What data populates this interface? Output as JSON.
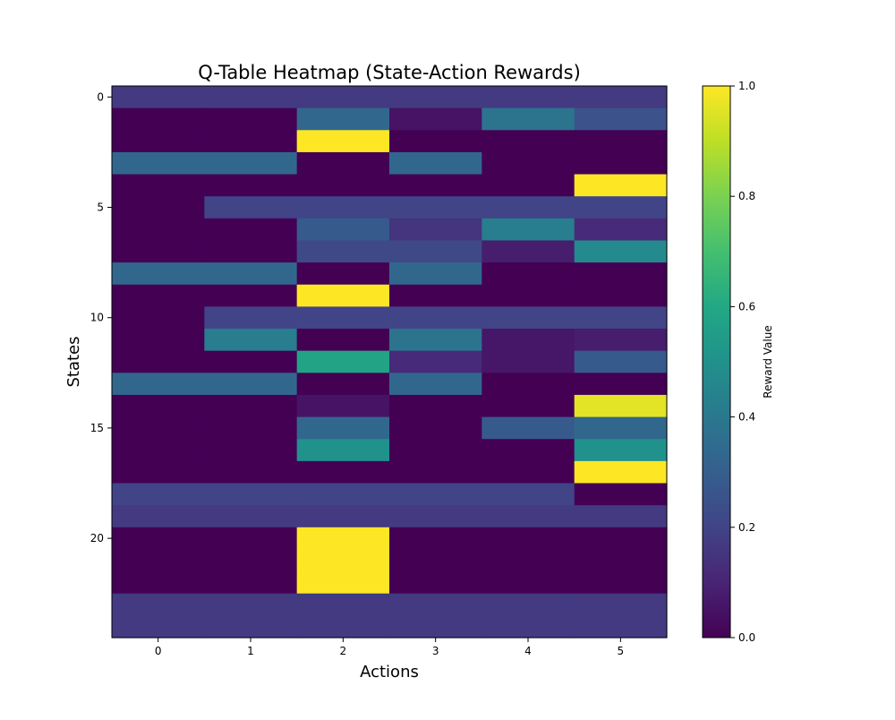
{
  "chart_data": {
    "type": "heatmap",
    "title": "Q-Table Heatmap (State-Action Rewards)",
    "xlabel": "Actions",
    "ylabel": "States",
    "x_categories": [
      0,
      1,
      2,
      3,
      4,
      5
    ],
    "y_categories": [
      0,
      1,
      2,
      3,
      4,
      5,
      6,
      7,
      8,
      9,
      10,
      11,
      12,
      13,
      14,
      15,
      16,
      17,
      18,
      19,
      20,
      21,
      22,
      23,
      24
    ],
    "x_ticks": [
      "0",
      "1",
      "2",
      "3",
      "4",
      "5"
    ],
    "y_ticks": [
      "0",
      "5",
      "10",
      "15",
      "20"
    ],
    "colormap": "viridis",
    "value_range": [
      0.0,
      1.0
    ],
    "grid": false,
    "colorbar": {
      "label": "Reward Value",
      "ticks": [
        "0.0",
        "0.2",
        "0.4",
        "0.6",
        "0.8",
        "1.0"
      ],
      "placement": "right"
    },
    "values": [
      [
        0.17,
        0.17,
        0.17,
        0.17,
        0.17,
        0.17
      ],
      [
        0.0,
        0.0,
        0.33,
        0.05,
        0.38,
        0.25
      ],
      [
        0.0,
        0.0,
        1.0,
        0.0,
        0.0,
        0.0
      ],
      [
        0.33,
        0.33,
        0.0,
        0.33,
        0.0,
        0.0
      ],
      [
        0.0,
        0.0,
        0.0,
        0.0,
        0.0,
        1.0
      ],
      [
        0.0,
        0.2,
        0.2,
        0.2,
        0.2,
        0.2
      ],
      [
        0.0,
        0.0,
        0.28,
        0.15,
        0.42,
        0.12
      ],
      [
        0.0,
        0.0,
        0.22,
        0.22,
        0.08,
        0.47
      ],
      [
        0.33,
        0.33,
        0.0,
        0.33,
        0.0,
        0.0
      ],
      [
        0.0,
        0.0,
        1.0,
        0.0,
        0.0,
        0.0
      ],
      [
        0.0,
        0.2,
        0.2,
        0.2,
        0.2,
        0.2
      ],
      [
        0.0,
        0.42,
        0.0,
        0.38,
        0.06,
        0.08
      ],
      [
        0.0,
        0.0,
        0.58,
        0.12,
        0.06,
        0.28
      ],
      [
        0.33,
        0.33,
        0.0,
        0.33,
        0.0,
        0.0
      ],
      [
        0.0,
        0.0,
        0.05,
        0.0,
        0.0,
        0.96
      ],
      [
        0.0,
        0.0,
        0.33,
        0.0,
        0.28,
        0.33
      ],
      [
        0.0,
        0.0,
        0.5,
        0.0,
        0.0,
        0.5
      ],
      [
        0.0,
        0.0,
        0.0,
        0.0,
        0.0,
        1.0
      ],
      [
        0.2,
        0.2,
        0.2,
        0.2,
        0.2,
        0.0
      ],
      [
        0.17,
        0.17,
        0.17,
        0.17,
        0.17,
        0.17
      ],
      [
        0.0,
        0.0,
        1.0,
        0.0,
        0.0,
        0.0
      ],
      [
        0.0,
        0.0,
        1.0,
        0.0,
        0.0,
        0.0
      ],
      [
        0.0,
        0.0,
        1.0,
        0.0,
        0.0,
        0.0
      ],
      [
        0.17,
        0.17,
        0.17,
        0.17,
        0.17,
        0.17
      ],
      [
        0.17,
        0.17,
        0.17,
        0.17,
        0.17,
        0.17
      ]
    ]
  }
}
